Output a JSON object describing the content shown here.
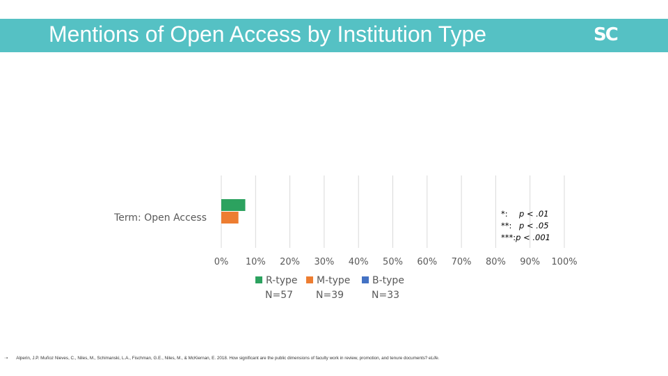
{
  "header": {
    "title": "Mentions of Open Access by Institution Type",
    "logo_s": "S",
    "logo_c": "C"
  },
  "chart_data": {
    "type": "bar",
    "orientation": "horizontal",
    "categories": [
      "Term: Open Access"
    ],
    "series": [
      {
        "name": "R-type",
        "n_label": "N=57",
        "values": [
          0.07
        ],
        "color": "#2ca25f"
      },
      {
        "name": "M-type",
        "n_label": "N=39",
        "values": [
          0.05
        ],
        "color": "#ed7d31"
      },
      {
        "name": "B-type",
        "n_label": "N=33",
        "values": [
          0.0
        ],
        "color": "#4472c4"
      }
    ],
    "xlim": [
      0,
      1
    ],
    "xticks": [
      "0%",
      "10%",
      "20%",
      "30%",
      "40%",
      "50%",
      "60%",
      "70%",
      "80%",
      "90%",
      "100%"
    ],
    "grid": true,
    "legend_placement": "bottom"
  },
  "significance": {
    "line1_stars": "*:",
    "line1_text": "p < .01",
    "line2_stars": "**:",
    "line2_text": "p < .05",
    "line3_stars": "***:",
    "line3_text": "p < .001"
  },
  "footer": {
    "arrow": "➝",
    "citation": "Alperin, J.P. Muñoz Nieves, C., Niles, M., Schimanski, L.A., Fischman, G.E., Niles, M., & McKiernan, E. 2018. How significant are the public dimensions of faculty work in review, promotion, and tenure documents?",
    "journal": "eLife."
  }
}
